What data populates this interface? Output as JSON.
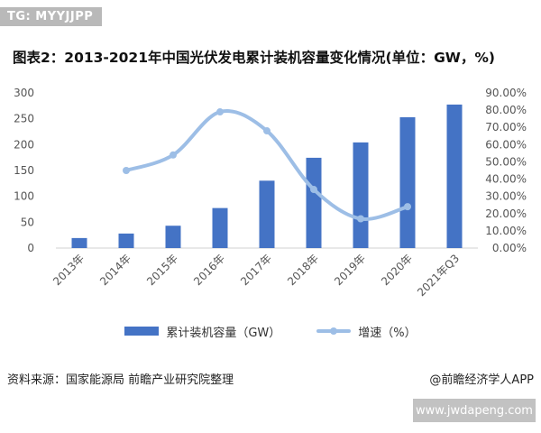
{
  "header": {
    "tag": "TG: MYYJJPP",
    "title": "图表2：2013-2021年中国光伏发电累计装机容量变化情况(单位：GW，%)"
  },
  "chart_data": {
    "type": "bar",
    "title": "图表2：2013-2021年中国光伏发电累计装机容量变化情况(单位：GW，%)",
    "categories": [
      "2013年",
      "2014年",
      "2015年",
      "2016年",
      "2017年",
      "2018年",
      "2019年",
      "2020年",
      "2021年Q3"
    ],
    "series": [
      {
        "name": "累计装机容量（GW）",
        "type": "bar",
        "axis": "left",
        "color": "#4473c5",
        "values": [
          19.4,
          28.1,
          43.2,
          77.4,
          130.3,
          174.6,
          204.3,
          253,
          277.5
        ]
      },
      {
        "name": "增速（%）",
        "type": "line",
        "axis": "right",
        "color": "#9dbee6",
        "values": [
          null,
          45,
          54,
          79,
          68,
          34,
          17,
          24,
          null
        ]
      }
    ],
    "y_left": {
      "min": 0,
      "max": 300,
      "ticks": [
        "0",
        "50",
        "100",
        "150",
        "200",
        "250",
        "300"
      ]
    },
    "y_right": {
      "min": 0,
      "max": 90,
      "ticks": [
        "0.00%",
        "10.00%",
        "20.00%",
        "30.00%",
        "40.00%",
        "50.00%",
        "60.00%",
        "70.00%",
        "80.00%",
        "90.00%"
      ]
    },
    "grid": false,
    "legend_position": "bottom"
  },
  "legend": {
    "bar_label": "累计装机容量（GW）",
    "line_label": "增速（%）"
  },
  "footer": {
    "source": "资料来源：国家能源局 前瞻产业研究院整理",
    "brand": "@前瞻经济学人APP"
  },
  "watermark": {
    "url": "www.jwdapeng.com"
  }
}
